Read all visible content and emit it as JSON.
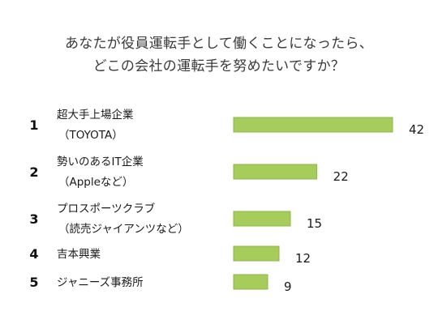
{
  "title_lines": [
    "あなたが役員運転手として働くことになったら、",
    "どこの会社の運転手を努めたいですか？"
  ],
  "colors": {
    "bar_fill": "#a6cd5c",
    "bar_stroke": "#8db84a"
  },
  "chart_data": {
    "type": "bar",
    "orientation": "horizontal",
    "title": "あなたが役員運転手として働くことになったら、どこの会社の運転手を努めたいですか？",
    "ranks": [
      "1",
      "2",
      "3",
      "4",
      "5"
    ],
    "categories": [
      [
        "超大手上場企業",
        "（TOYOTA）"
      ],
      [
        "勢いのあるIT企業",
        "（Appleなど）"
      ],
      [
        "プロスポーツクラブ",
        "（読売ジャイアンツなど）"
      ],
      [
        "吉本興業"
      ],
      [
        "ジャニーズ事務所"
      ]
    ],
    "values": [
      42,
      22,
      15,
      12,
      9
    ],
    "xlim": [
      0,
      42
    ],
    "grid": false,
    "legend": "none"
  }
}
